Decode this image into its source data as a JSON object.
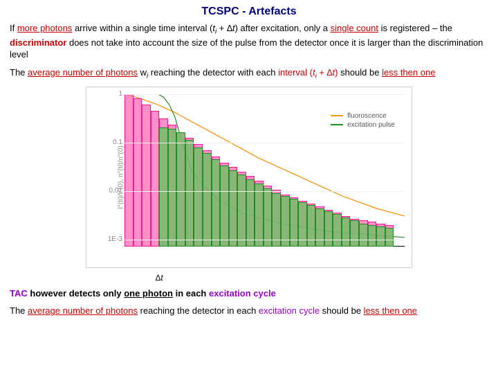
{
  "title": "TCSPC - Artefacts",
  "p1": {
    "t1": "If ",
    "more_photons": "more photons",
    "t2": " arrive within a single time interval (",
    "ti": "t",
    "ti_sub": "i",
    "t3": " + ∆",
    "dt": "t",
    "t4": ") after excitation, only a ",
    "single_count": "single count",
    "t5": " is registered – the ",
    "discriminator": "discriminator",
    "t6": " does not take into account the size of the pulse from the detector once it is larger than the discrimination level"
  },
  "p2": {
    "t1": "The ",
    "avg": "average number of photons",
    "t2": " w",
    "wi_sub": "i",
    "t3": " reaching the detector with each ",
    "interval": "interval (",
    "ti": "t",
    "ti_sub": "i",
    "t4": " + ∆",
    "dt": "t",
    "t5": ")",
    "t6": " should be ",
    "less": "less then one"
  },
  "p3": {
    "tac": "TAC",
    "t1": " however detects only ",
    "one": "one photon",
    "t2": " in each ",
    "cycle": "excitation cycle"
  },
  "p4": {
    "t1": "The ",
    "avg": "average number of photons",
    "t2": " reaching the detector in each ",
    "cycle": "excitation cycle",
    "t3": " should be ",
    "less": "less then one"
  },
  "chart": {
    "ylabel": "I°(ti)/I°(0), n°(ti)/n°(0)",
    "ticks": [
      "1",
      "0.1",
      "0.01",
      "1E-3"
    ],
    "dt_label": "∆t",
    "legend": {
      "fluo": "fluoroscence",
      "exc": "excitation pulse"
    },
    "pink_heights_pct": [
      100,
      97,
      93,
      89,
      84,
      80,
      75,
      71,
      67,
      63,
      59,
      55,
      52,
      49,
      46,
      43,
      40,
      37,
      34,
      32,
      30,
      28,
      26,
      24,
      22,
      20,
      18,
      17,
      16,
      15,
      14
    ],
    "green_heights_pct": [
      0,
      0,
      0,
      0,
      78,
      77,
      75,
      70,
      65,
      61,
      57,
      53,
      50,
      47,
      44,
      41,
      38,
      35,
      33,
      31,
      29,
      27,
      25,
      23,
      21,
      19,
      17,
      15,
      14,
      13,
      12
    ],
    "orange_line": [
      [
        0,
        100
      ],
      [
        6,
        97
      ],
      [
        12,
        93
      ],
      [
        18,
        88
      ],
      [
        24,
        82
      ],
      [
        30,
        76
      ],
      [
        36,
        70
      ],
      [
        42,
        64
      ],
      [
        48,
        58
      ],
      [
        54,
        53
      ],
      [
        60,
        48
      ],
      [
        66,
        43
      ],
      [
        72,
        38
      ],
      [
        78,
        33
      ],
      [
        84,
        29
      ],
      [
        90,
        25
      ],
      [
        96,
        22
      ],
      [
        100,
        20
      ]
    ],
    "green_line": [
      [
        12,
        100
      ],
      [
        14,
        98
      ],
      [
        16,
        93
      ],
      [
        18,
        85
      ],
      [
        20,
        72
      ],
      [
        22,
        60
      ],
      [
        24,
        50
      ],
      [
        28,
        40
      ],
      [
        34,
        30
      ],
      [
        42,
        22
      ],
      [
        56,
        15
      ],
      [
        72,
        10
      ],
      [
        100,
        6
      ]
    ],
    "colors": {
      "pink_fill": "rgba(255,105,180,0.75)",
      "pink_border": "#ff1493",
      "green_fill": "rgba(85,200,85,0.7)",
      "green_border": "#228b22",
      "orange": "#ff8c00",
      "green_line": "#228b22",
      "grid": "#eee",
      "axis": "#000"
    },
    "bar_width_pct": 3.1,
    "n_bars": 31
  }
}
